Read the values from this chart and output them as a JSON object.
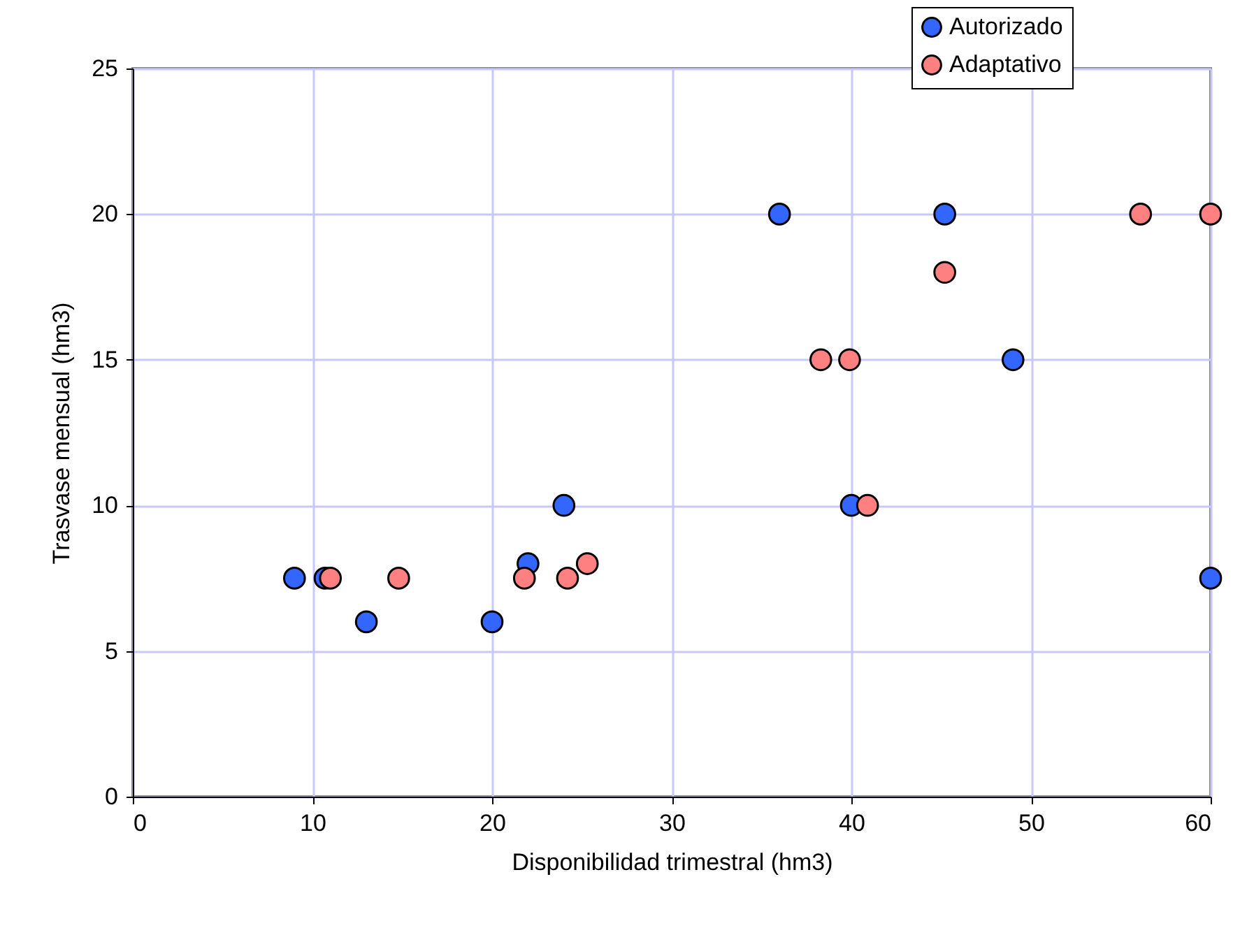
{
  "chart_data": {
    "type": "scatter",
    "xlabel": "Disponibilidad trimestral (hm3)",
    "ylabel": "Trasvase mensual (hm3)",
    "xlim": [
      0,
      60
    ],
    "xticks": [
      0,
      10,
      20,
      30,
      40,
      50,
      60
    ],
    "ylim": [
      0,
      25
    ],
    "yticks": [
      0,
      5,
      10,
      15,
      20,
      25
    ],
    "grid": true,
    "legend": "top right",
    "marker": "circle",
    "series": [
      {
        "name": "Autorizado",
        "color": "#3366ff",
        "x": [
          9,
          10.7,
          13,
          20,
          22,
          24,
          36,
          40,
          45.2,
          49,
          60
        ],
        "values": [
          7.5,
          7.5,
          6,
          6,
          8,
          10,
          20,
          10,
          20,
          15,
          7.5
        ]
      },
      {
        "name": "Adaptativo",
        "color": "#ff8080",
        "x": [
          11,
          14.8,
          21.8,
          24.2,
          25.3,
          38.3,
          39.9,
          40.9,
          45.2,
          56.1,
          60
        ],
        "values": [
          7.5,
          7.5,
          7.5,
          7.5,
          8,
          15,
          15,
          10,
          18,
          20,
          20
        ]
      }
    ]
  }
}
